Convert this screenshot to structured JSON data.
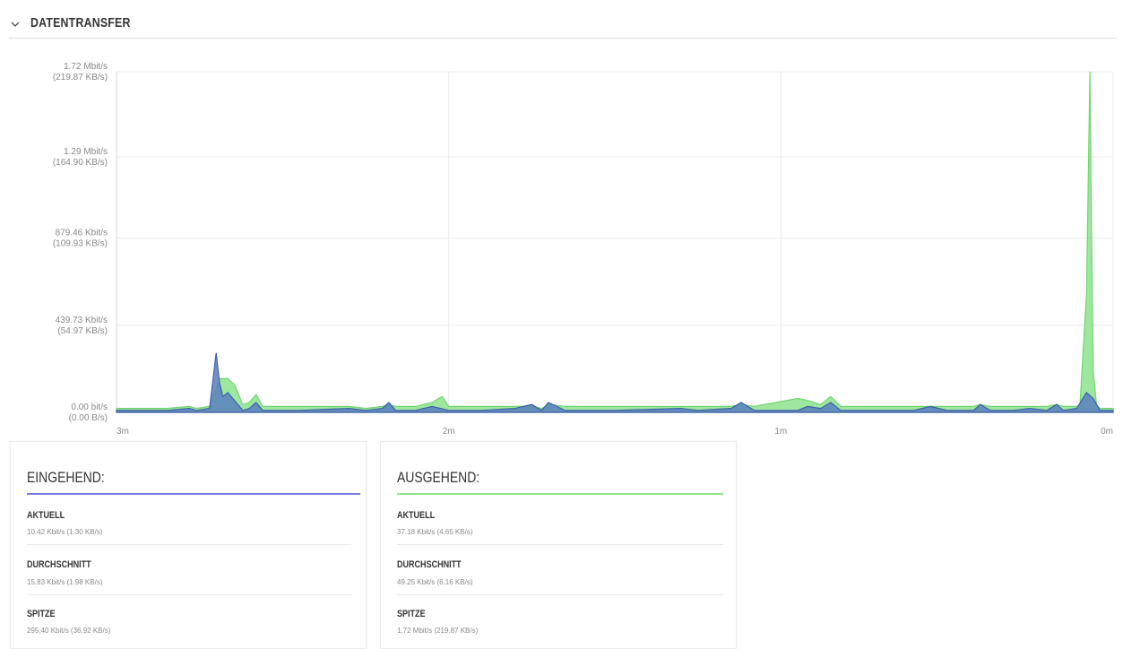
{
  "section": {
    "title": "DATENTRANSFER",
    "icon": "chevron-down-icon"
  },
  "colors": {
    "incoming": "#7b7be0",
    "outgoing": "#8fe28f",
    "incoming_fill": "#5b7fc0",
    "outgoing_fill": "#93e493"
  },
  "chart_data": {
    "type": "area",
    "y_tick_labels": [
      {
        "value": 1.72,
        "line1": "1.72 Mbit/s",
        "line2": "(219.87 KB/s)"
      },
      {
        "value": 1.29,
        "line1": "1.29 Mbit/s",
        "line2": "(164.90 KB/s)"
      },
      {
        "value": 0.8795,
        "line1": "879.46 Kbit/s",
        "line2": "(109.93 KB/s)"
      },
      {
        "value": 0.4397,
        "line1": "439.73 Kbit/s",
        "line2": "(54.97 KB/s)"
      },
      {
        "value": 0,
        "line1": "0.00 bit/s",
        "line2": "(0.00 B/s)"
      }
    ],
    "x_tick_labels": [
      {
        "value": 3,
        "label": "3m"
      },
      {
        "value": 2,
        "label": "2m"
      },
      {
        "value": 1,
        "label": "1m"
      },
      {
        "value": 0,
        "label": "0m"
      }
    ],
    "xlim": [
      3,
      0
    ],
    "ylim": [
      0,
      1.72
    ],
    "series": [
      {
        "name": "EINGEHEND",
        "color": "#5b7fc0",
        "points": [
          [
            3,
            0.01
          ],
          [
            2.85,
            0.01
          ],
          [
            2.78,
            0.02
          ],
          [
            2.76,
            0.01
          ],
          [
            2.72,
            0.02
          ],
          [
            2.7,
            0.3
          ],
          [
            2.69,
            0.15
          ],
          [
            2.68,
            0.08
          ],
          [
            2.665,
            0.1
          ],
          [
            2.645,
            0.06
          ],
          [
            2.62,
            0.01
          ],
          [
            2.6,
            0.02
          ],
          [
            2.58,
            0.05
          ],
          [
            2.56,
            0.01
          ],
          [
            2.45,
            0.01
          ],
          [
            2.3,
            0.02
          ],
          [
            2.25,
            0.01
          ],
          [
            2.2,
            0.02
          ],
          [
            2.18,
            0.05
          ],
          [
            2.16,
            0.01
          ],
          [
            2.1,
            0.01
          ],
          [
            2.05,
            0.03
          ],
          [
            2.0,
            0.01
          ],
          [
            1.9,
            0.01
          ],
          [
            1.8,
            0.02
          ],
          [
            1.75,
            0.04
          ],
          [
            1.72,
            0.01
          ],
          [
            1.7,
            0.05
          ],
          [
            1.65,
            0.01
          ],
          [
            1.5,
            0.01
          ],
          [
            1.3,
            0.02
          ],
          [
            1.25,
            0.01
          ],
          [
            1.15,
            0.02
          ],
          [
            1.12,
            0.05
          ],
          [
            1.08,
            0.01
          ],
          [
            0.95,
            0.01
          ],
          [
            0.92,
            0.03
          ],
          [
            0.88,
            0.02
          ],
          [
            0.85,
            0.05
          ],
          [
            0.82,
            0.01
          ],
          [
            0.6,
            0.01
          ],
          [
            0.55,
            0.03
          ],
          [
            0.5,
            0.01
          ],
          [
            0.42,
            0.01
          ],
          [
            0.4,
            0.04
          ],
          [
            0.37,
            0.01
          ],
          [
            0.3,
            0.01
          ],
          [
            0.25,
            0.02
          ],
          [
            0.2,
            0.01
          ],
          [
            0.17,
            0.04
          ],
          [
            0.15,
            0.01
          ],
          [
            0.11,
            0.02
          ],
          [
            0.08,
            0.1
          ],
          [
            0.06,
            0.07
          ],
          [
            0.04,
            0.01
          ],
          [
            0.0,
            0.01
          ]
        ]
      },
      {
        "name": "AUSGEHEND",
        "color": "#93e493",
        "points": [
          [
            3,
            0.02
          ],
          [
            2.85,
            0.02
          ],
          [
            2.78,
            0.03
          ],
          [
            2.76,
            0.02
          ],
          [
            2.72,
            0.03
          ],
          [
            2.7,
            0.12
          ],
          [
            2.69,
            0.17
          ],
          [
            2.665,
            0.17
          ],
          [
            2.645,
            0.14
          ],
          [
            2.62,
            0.04
          ],
          [
            2.6,
            0.05
          ],
          [
            2.58,
            0.09
          ],
          [
            2.56,
            0.03
          ],
          [
            2.45,
            0.03
          ],
          [
            2.3,
            0.03
          ],
          [
            2.25,
            0.02
          ],
          [
            2.2,
            0.03
          ],
          [
            2.18,
            0.04
          ],
          [
            2.16,
            0.03
          ],
          [
            2.1,
            0.03
          ],
          [
            2.05,
            0.05
          ],
          [
            2.02,
            0.08
          ],
          [
            2.0,
            0.03
          ],
          [
            1.9,
            0.03
          ],
          [
            1.8,
            0.03
          ],
          [
            1.75,
            0.03
          ],
          [
            1.72,
            0.02
          ],
          [
            1.7,
            0.04
          ],
          [
            1.65,
            0.03
          ],
          [
            1.5,
            0.03
          ],
          [
            1.3,
            0.03
          ],
          [
            1.25,
            0.03
          ],
          [
            1.15,
            0.03
          ],
          [
            1.12,
            0.04
          ],
          [
            1.08,
            0.03
          ],
          [
            0.95,
            0.07
          ],
          [
            0.92,
            0.06
          ],
          [
            0.88,
            0.04
          ],
          [
            0.85,
            0.08
          ],
          [
            0.82,
            0.03
          ],
          [
            0.6,
            0.03
          ],
          [
            0.55,
            0.03
          ],
          [
            0.5,
            0.03
          ],
          [
            0.42,
            0.03
          ],
          [
            0.4,
            0.04
          ],
          [
            0.37,
            0.03
          ],
          [
            0.3,
            0.03
          ],
          [
            0.25,
            0.03
          ],
          [
            0.2,
            0.03
          ],
          [
            0.17,
            0.04
          ],
          [
            0.15,
            0.03
          ],
          [
            0.1,
            0.03
          ],
          [
            0.08,
            0.6
          ],
          [
            0.07,
            1.72
          ],
          [
            0.065,
            0.9
          ],
          [
            0.06,
            0.2
          ],
          [
            0.05,
            0.04
          ],
          [
            0.04,
            0.02
          ],
          [
            0.0,
            0.02
          ]
        ]
      }
    ],
    "grid": true
  },
  "cards": [
    {
      "title": "EINGEHEND:",
      "line_color": "#7b7be0",
      "stats": [
        {
          "label": "AKTUELL",
          "value": "10.42 Kbit/s (1.30 KB/s)"
        },
        {
          "label": "DURCHSCHNITT",
          "value": "15.83 Kbit/s (1.98 KB/s)"
        },
        {
          "label": "SPITZE",
          "value": "295.40 Kbit/s (36.92 KB/s)"
        }
      ]
    },
    {
      "title": "AUSGEHEND:",
      "line_color": "#8fe28f",
      "stats": [
        {
          "label": "AKTUELL",
          "value": "37.18 Kbit/s (4.65 KB/s)"
        },
        {
          "label": "DURCHSCHNITT",
          "value": "49.25 Kbit/s (6.16 KB/s)"
        },
        {
          "label": "SPITZE",
          "value": "1.72 Mbit/s (219.87 KB/s)"
        }
      ]
    }
  ]
}
